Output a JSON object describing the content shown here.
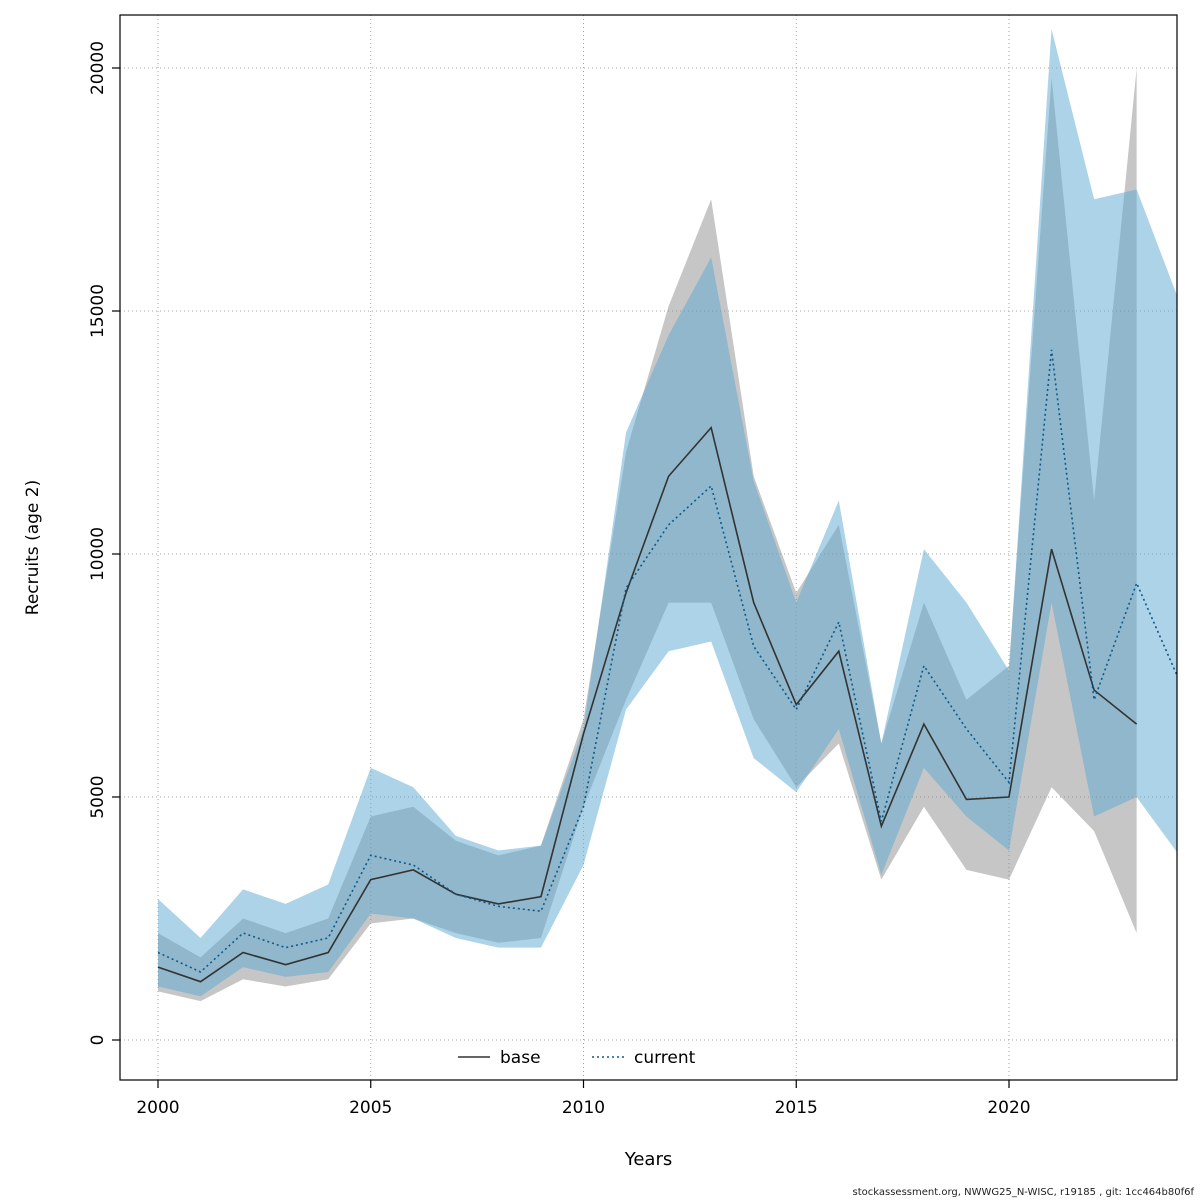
{
  "page": {
    "footer": "stockassessment.org, NWWG25_N-WISC, r19185 , git: 1cc464b80f6f"
  },
  "chart_data": {
    "type": "line",
    "title": "",
    "xlabel": "Years",
    "ylabel": "Recruits (age 2)",
    "xlim": [
      1999.1,
      2024.0
    ],
    "ylim": [
      0,
      20000
    ],
    "x_ticks": [
      2000,
      2005,
      2010,
      2015,
      2020
    ],
    "y_ticks": [
      0,
      5000,
      10000,
      15000,
      20000
    ],
    "grid": true,
    "legend_position": "bottom-center-inside",
    "series": [
      {
        "name": "base",
        "line_style": "solid",
        "line_color": "#333333",
        "band_color": "#808080",
        "band_opacity": 0.45,
        "x": [
          2000,
          2001,
          2002,
          2003,
          2004,
          2005,
          2006,
          2007,
          2008,
          2009,
          2010,
          2011,
          2012,
          2013,
          2014,
          2015,
          2016,
          2017,
          2018,
          2019,
          2020,
          2021,
          2022,
          2023
        ],
        "values": [
          1500,
          1200,
          1800,
          1550,
          1800,
          3300,
          3500,
          3000,
          2800,
          2950,
          6300,
          9200,
          11600,
          12600,
          9000,
          6900,
          8000,
          4400,
          6500,
          4950,
          5000,
          10100,
          7200,
          6500
        ],
        "low": [
          1000,
          800,
          1250,
          1100,
          1250,
          2400,
          2500,
          2200,
          2000,
          2100,
          4800,
          7000,
          9000,
          9000,
          6600,
          5200,
          6100,
          3300,
          4800,
          3500,
          3300,
          5200,
          4300,
          2200
        ],
        "high": [
          2200,
          1700,
          2500,
          2200,
          2500,
          4600,
          4800,
          4100,
          3800,
          4000,
          6600,
          12100,
          15100,
          17300,
          11600,
          9200,
          10600,
          6100,
          9000,
          7000,
          7700,
          19800,
          11100,
          20000
        ]
      },
      {
        "name": "current",
        "line_style": "dotted",
        "line_color": "#0e5a8a",
        "band_color": "#59a8d2",
        "band_opacity": 0.5,
        "x": [
          2000,
          2001,
          2002,
          2003,
          2004,
          2005,
          2006,
          2007,
          2008,
          2009,
          2010,
          2011,
          2012,
          2013,
          2014,
          2015,
          2016,
          2017,
          2018,
          2019,
          2020,
          2021,
          2022,
          2023,
          2024
        ],
        "values": [
          1800,
          1400,
          2200,
          1900,
          2100,
          3800,
          3600,
          3000,
          2750,
          2650,
          4800,
          9300,
          10600,
          11400,
          8100,
          6800,
          8600,
          4500,
          7700,
          6400,
          5300,
          14200,
          7000,
          9400,
          7400
        ],
        "low": [
          1100,
          900,
          1500,
          1300,
          1400,
          2600,
          2500,
          2100,
          1900,
          1900,
          3600,
          6800,
          8000,
          8200,
          5800,
          5100,
          6400,
          3400,
          5600,
          4600,
          3900,
          9000,
          4600,
          5000,
          3800
        ],
        "high": [
          2900,
          2100,
          3100,
          2800,
          3200,
          5600,
          5200,
          4200,
          3900,
          4000,
          6400,
          12500,
          14500,
          16100,
          11500,
          9000,
          11100,
          6100,
          10100,
          9000,
          7600,
          20800,
          17300,
          17500,
          15200
        ]
      }
    ]
  }
}
